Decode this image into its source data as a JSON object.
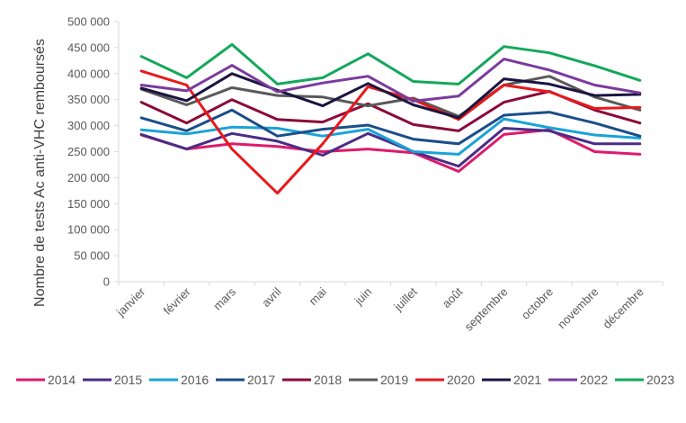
{
  "chart_data": {
    "type": "line",
    "title": "",
    "xlabel": "",
    "ylabel": "Nombre de tests Ac anti-VHC remboursés",
    "ylim": [
      0,
      500000
    ],
    "ytick_step": 50000,
    "yticks": [
      "0",
      "50 000",
      "100 000",
      "150 000",
      "200 000",
      "250 000",
      "300 000",
      "350 000",
      "400 000",
      "450 000",
      "500 000"
    ],
    "grid": false,
    "legend_position": "bottom",
    "categories": [
      "janvier",
      "février",
      "mars",
      "avril",
      "mai",
      "juin",
      "juillet",
      "août",
      "septembre",
      "octobre",
      "novembre",
      "décembre"
    ],
    "series": [
      {
        "name": "2014",
        "color": "#e0196b",
        "values": [
          282000,
          255000,
          265000,
          260000,
          250000,
          255000,
          248000,
          212000,
          283000,
          292000,
          250000,
          245000
        ]
      },
      {
        "name": "2015",
        "color": "#4b2c86",
        "values": [
          283000,
          255000,
          285000,
          270000,
          243000,
          285000,
          250000,
          222000,
          295000,
          290000,
          265000,
          265000
        ]
      },
      {
        "name": "2016",
        "color": "#1aa3d8",
        "values": [
          292000,
          284000,
          297000,
          295000,
          280000,
          293000,
          250000,
          245000,
          313000,
          296000,
          282000,
          276000
        ]
      },
      {
        "name": "2017",
        "color": "#1a4e8a",
        "values": [
          315000,
          290000,
          330000,
          280000,
          293000,
          301000,
          274000,
          265000,
          320000,
          326000,
          305000,
          280000
        ]
      },
      {
        "name": "2018",
        "color": "#8b0a3a",
        "values": [
          345000,
          305000,
          350000,
          312000,
          307000,
          342000,
          302000,
          290000,
          345000,
          366000,
          330000,
          305000
        ]
      },
      {
        "name": "2019",
        "color": "#595959",
        "values": [
          370000,
          340000,
          373000,
          358000,
          355000,
          338000,
          353000,
          318000,
          378000,
          395000,
          355000,
          330000
        ]
      },
      {
        "name": "2020",
        "color": "#e8191b",
        "values": [
          405000,
          378000,
          255000,
          170000,
          265000,
          375000,
          350000,
          312000,
          378000,
          365000,
          333000,
          335000
        ]
      },
      {
        "name": "2021",
        "color": "#1c1440",
        "values": [
          372000,
          348000,
          400000,
          368000,
          338000,
          381000,
          340000,
          315000,
          390000,
          380000,
          358000,
          360000
        ]
      },
      {
        "name": "2022",
        "color": "#7b3a9e",
        "values": [
          378000,
          367000,
          416000,
          365000,
          382000,
          395000,
          347000,
          357000,
          428000,
          407000,
          378000,
          363000
        ]
      },
      {
        "name": "2023",
        "color": "#13a85a",
        "values": [
          433000,
          392000,
          456000,
          380000,
          392000,
          438000,
          385000,
          380000,
          452000,
          440000,
          415000,
          387000
        ]
      }
    ]
  }
}
